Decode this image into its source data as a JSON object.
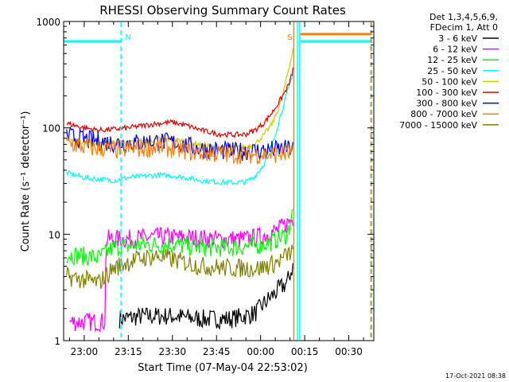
{
  "chart_data": {
    "type": "line",
    "title": "RHESSI Observing Summary Count Rates",
    "xlabel": "Start Time (07-May-04 22:53:02)",
    "ylabel": "Count Rate (s⁻¹ detector⁻¹)",
    "y_scale": "log",
    "ylim": [
      1,
      1000
    ],
    "xlim_minutes": [
      -7.0,
      98.5
    ],
    "x_ticks": [
      {
        "label": "23:00",
        "minute": 0
      },
      {
        "label": "23:15",
        "minute": 15
      },
      {
        "label": "23:30",
        "minute": 30
      },
      {
        "label": "23:45",
        "minute": 45
      },
      {
        "label": "00:00",
        "minute": 60
      },
      {
        "label": "00:15",
        "minute": 75
      },
      {
        "label": "00:30",
        "minute": 90
      }
    ],
    "y_ticks": [
      {
        "label": "1",
        "value": 1
      },
      {
        "label": "10",
        "value": 10
      },
      {
        "label": "100",
        "value": 100
      },
      {
        "label": "1000",
        "value": 1000
      }
    ],
    "legend": {
      "placement": "top-right",
      "header": [
        "Det 1,3,4,5,6,9,",
        "FDecim 1, Att 0"
      ]
    },
    "series": [
      {
        "name": "3 - 6 keV",
        "color": "#000000",
        "x": [
          12,
          20,
          30,
          40,
          50,
          58,
          63,
          66,
          69,
          71
        ],
        "y": [
          1.6,
          1.7,
          1.7,
          1.6,
          1.6,
          1.8,
          2.5,
          3.0,
          3.5,
          5.0
        ],
        "noisy": true
      },
      {
        "name": "6 - 12 keV",
        "color": "#ff00ff",
        "x": [
          -5,
          7,
          7.5,
          15,
          25,
          35,
          45,
          55,
          60,
          66,
          71
        ],
        "y": [
          1.5,
          1.5,
          9,
          9,
          9.5,
          9.3,
          9.0,
          9.0,
          9.5,
          11,
          14
        ],
        "noisy": true
      },
      {
        "name": "12 - 25 keV",
        "color": "#00ff00",
        "x": [
          -6,
          5,
          10,
          20,
          30,
          40,
          50,
          58,
          64,
          69,
          71
        ],
        "y": [
          6.5,
          6.0,
          7.5,
          8.0,
          8.0,
          7.5,
          7.5,
          7.8,
          8.5,
          10,
          16
        ],
        "noisy": true
      },
      {
        "name": "25 - 50 keV",
        "color": "#00ffff",
        "x": [
          -6,
          0,
          5,
          10,
          15,
          20,
          25,
          30,
          35,
          40,
          45,
          50,
          55,
          58,
          61,
          64,
          66,
          68,
          70,
          71
        ],
        "y": [
          38,
          34,
          33,
          32,
          34,
          35,
          36,
          35.5,
          34,
          32,
          31,
          30.5,
          31,
          35,
          45,
          70,
          110,
          170,
          260,
          330
        ]
      },
      {
        "name": "50 - 100 keV",
        "color": "#cccc00",
        "x": [
          -6,
          0,
          5,
          10,
          15,
          20,
          25,
          30,
          35,
          40,
          45,
          50,
          55,
          58,
          61,
          64,
          66,
          68,
          70,
          71
        ],
        "y": [
          78,
          73,
          71,
          72,
          73,
          75,
          78,
          78,
          74,
          69,
          66,
          65,
          65.5,
          70,
          85,
          110,
          150,
          230,
          400,
          560
        ]
      },
      {
        "name": "100 - 300 keV",
        "color": "#dd0000",
        "x": [
          -6,
          0,
          5,
          10,
          15,
          20,
          25,
          30,
          35,
          40,
          45,
          50,
          55,
          58,
          61,
          64,
          66,
          68,
          70,
          71
        ],
        "y": [
          110,
          100,
          95,
          97,
          100,
          105,
          110,
          113,
          105,
          95,
          88,
          86,
          87,
          95,
          110,
          140,
          170,
          210,
          270,
          360
        ]
      },
      {
        "name": "300 - 800 keV",
        "color": "#0000dd",
        "x": [
          -6,
          0,
          10,
          20,
          25,
          30,
          40,
          50,
          60,
          71
        ],
        "y": [
          85,
          78,
          72,
          73,
          75,
          73,
          63,
          60,
          61,
          64
        ],
        "noisy": true
      },
      {
        "name": "800 - 7000 keV",
        "color": "#ff7f00",
        "x": [
          -6,
          0,
          10,
          20,
          25,
          30,
          40,
          50,
          60,
          70.6
        ],
        "y": [
          72,
          66,
          62,
          64,
          66,
          64,
          58,
          56,
          56,
          57
        ],
        "noisy": true
      },
      {
        "name": "7000 - 15000 keV",
        "color": "#808000",
        "x": [
          -6,
          5,
          10,
          15,
          20,
          25,
          30,
          40,
          50,
          60,
          66,
          71
        ],
        "y": [
          4.0,
          3.5,
          4.8,
          5.5,
          6.0,
          6.2,
          5.8,
          5.0,
          4.8,
          4.8,
          5.5,
          7.0
        ],
        "noisy": true
      }
    ],
    "annotations": [
      {
        "label": "N",
        "color": "#00ffff",
        "segment": [
          -7,
          12.5
        ],
        "y": 650,
        "vline_x": 12.5,
        "vline_style": "dashed"
      },
      {
        "label": "S",
        "color": "#ff7f00",
        "segment": [
          73.5,
          97.5
        ],
        "y": 760,
        "vline_x": 71.3,
        "vline_style": "solid"
      },
      {
        "label": "",
        "color": "#00ffff",
        "segment": [
          73.5,
          97.5
        ],
        "y": 650,
        "vline_x": 72.5,
        "vline_style": "solid"
      },
      {
        "label": "",
        "color": "#00ffff",
        "segment": null,
        "y": null,
        "vline_x": 73.3,
        "vline_style": "solid"
      },
      {
        "label": "",
        "color": "#ff7f00",
        "segment": null,
        "y": null,
        "vline_x": 97.5,
        "vline_style": "dashed"
      },
      {
        "label": "",
        "color": "#00ffff",
        "segment": null,
        "y": null,
        "vline_x": 97.8,
        "vline_style": "dashed"
      }
    ],
    "timestamp": "17-Oct-2021 08:38"
  }
}
